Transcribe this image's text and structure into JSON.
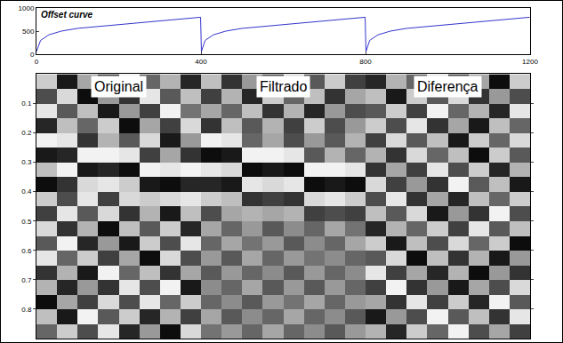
{
  "chart_data": [
    {
      "type": "line",
      "title": "Offset curve",
      "color": "#3333cc",
      "x": [
        0,
        10,
        30,
        60,
        100,
        200,
        300,
        399,
        401,
        410,
        430,
        460,
        500,
        600,
        700,
        799,
        801,
        810,
        830,
        860,
        900,
        1000,
        1100,
        1199
      ],
      "values": [
        60,
        300,
        420,
        500,
        560,
        640,
        720,
        800,
        60,
        300,
        420,
        500,
        560,
        640,
        720,
        800,
        60,
        300,
        420,
        500,
        560,
        640,
        720,
        800
      ],
      "xlim": [
        0,
        1200
      ],
      "xticks": [
        0,
        400,
        800,
        1200
      ],
      "ylim": [
        0,
        1000
      ],
      "yticks": [
        0,
        500,
        1000
      ]
    },
    {
      "type": "heatmap",
      "annotations": [
        "Original",
        "Filtrado",
        "Diferença"
      ],
      "tick_labels": "y",
      "xlim": [
        0,
        1200
      ],
      "ylim": [
        0.9,
        0
      ],
      "yticks": [
        0.1,
        0.2,
        0.3,
        0.4,
        0.5,
        0.6,
        0.7,
        0.8
      ],
      "zlim": [
        -1,
        1
      ],
      "x": [
        25,
        75,
        125,
        175,
        225,
        275,
        325,
        375,
        425,
        475,
        525,
        575,
        625,
        675,
        725,
        775,
        825,
        875,
        925,
        975,
        1025,
        1075,
        1125,
        1175
      ],
      "y": [
        0.025,
        0.075,
        0.125,
        0.175,
        0.225,
        0.275,
        0.325,
        0.375,
        0.425,
        0.475,
        0.525,
        0.575,
        0.625,
        0.675,
        0.725,
        0.775,
        0.825,
        0.875
      ],
      "z": [
        [
          0.6,
          -0.8,
          0.3,
          -0.5,
          0.9,
          -0.2,
          0.4,
          -0.7,
          0.5,
          -0.6,
          0.2,
          -0.4,
          0.7,
          -0.3,
          0.6,
          -0.5,
          -0.7,
          0.4,
          -0.2,
          0.8,
          -0.5,
          0.3,
          -0.9,
          0.6
        ],
        [
          -0.4,
          0.7,
          -0.9,
          0.2,
          -0.6,
          0.8,
          -0.3,
          0.5,
          -0.5,
          0.4,
          -0.7,
          0.6,
          -0.2,
          0.5,
          -0.6,
          0.3,
          0.5,
          -0.8,
          0.6,
          -0.3,
          0.7,
          -0.6,
          0.2,
          -0.4
        ],
        [
          0.8,
          -0.3,
          0.5,
          -0.8,
          0.2,
          -0.5,
          0.9,
          -0.1,
          0.3,
          -0.2,
          0.5,
          -0.6,
          0.4,
          -0.7,
          0.2,
          -0.4,
          -0.3,
          0.6,
          -0.5,
          0.9,
          -0.2,
          0.4,
          -0.7,
          0.8
        ],
        [
          -0.7,
          0.5,
          -0.2,
          0.6,
          -0.9,
          0.3,
          -0.5,
          0.7,
          -0.6,
          0.5,
          -0.3,
          0.4,
          -0.5,
          0.6,
          -0.4,
          0.2,
          0.6,
          -0.4,
          0.8,
          -0.6,
          0.3,
          -0.8,
          0.5,
          -0.2
        ],
        [
          0.9,
          0.8,
          -0.6,
          0.4,
          -0.3,
          0.7,
          -0.8,
          0.2,
          0.9,
          0.8,
          -0.2,
          0.3,
          -0.4,
          0.2,
          -0.3,
          0.4,
          -0.5,
          0.7,
          -0.3,
          0.5,
          -0.8,
          0.6,
          -0.2,
          0.7
        ],
        [
          -0.8,
          -0.7,
          0.9,
          0.9,
          0.8,
          -0.5,
          0.3,
          -0.6,
          -0.9,
          -0.8,
          0.9,
          0.9,
          0.8,
          -0.3,
          0.4,
          -0.2,
          0.4,
          -0.6,
          0.7,
          -0.2,
          0.5,
          -0.9,
          0.6,
          -0.3
        ],
        [
          0.5,
          0.9,
          -0.8,
          -0.7,
          -0.9,
          0.9,
          0.8,
          0.9,
          0.8,
          0.7,
          -0.9,
          -0.8,
          -0.9,
          0.9,
          0.9,
          0.8,
          -0.6,
          0.3,
          -0.5,
          0.8,
          -0.4,
          0.6,
          -0.7,
          0.4
        ],
        [
          -0.9,
          -0.6,
          0.7,
          0.8,
          0.6,
          -0.8,
          -0.9,
          -0.7,
          -0.7,
          -0.8,
          0.8,
          0.7,
          0.8,
          -0.9,
          -0.8,
          -0.9,
          0.7,
          -0.5,
          0.2,
          -0.6,
          0.9,
          -0.3,
          0.5,
          -0.8
        ],
        [
          0.6,
          -0.4,
          0.8,
          -0.5,
          0.7,
          0.6,
          0.7,
          0.8,
          0.6,
          0.5,
          -0.6,
          -0.5,
          -0.6,
          0.7,
          0.8,
          0.6,
          -0.4,
          0.8,
          -0.6,
          0.3,
          -0.7,
          0.5,
          -0.2,
          0.6
        ],
        [
          -0.5,
          0.8,
          -0.3,
          0.7,
          -0.6,
          0.4,
          -0.8,
          0.5,
          -0.4,
          0.3,
          0.4,
          0.3,
          0.4,
          -0.5,
          -0.4,
          -0.5,
          0.5,
          -0.3,
          0.7,
          -0.8,
          0.2,
          -0.6,
          0.9,
          -0.4
        ],
        [
          0.7,
          -0.6,
          0.4,
          -0.9,
          0.5,
          -0.3,
          0.6,
          -0.7,
          0.3,
          -0.2,
          0.2,
          -0.3,
          0.1,
          -0.2,
          0.3,
          -0.1,
          -0.7,
          0.4,
          -0.2,
          0.6,
          -0.5,
          0.8,
          -0.3,
          0.5
        ],
        [
          -0.3,
          0.9,
          -0.7,
          0.2,
          -0.8,
          0.6,
          -0.4,
          0.8,
          -0.2,
          0.3,
          -0.1,
          0.2,
          -0.3,
          0.1,
          -0.2,
          0.3,
          0.6,
          -0.8,
          0.5,
          -0.4,
          0.7,
          -0.2,
          0.6,
          -0.9
        ],
        [
          0.8,
          -0.2,
          0.6,
          -0.5,
          0.3,
          -0.9,
          0.7,
          -0.4,
          0.2,
          -0.3,
          0.3,
          -0.2,
          0.2,
          -0.1,
          0.1,
          -0.2,
          -0.3,
          0.7,
          -0.9,
          0.5,
          -0.6,
          0.4,
          -0.8,
          0.2
        ],
        [
          -0.6,
          0.4,
          -0.8,
          0.9,
          -0.2,
          0.5,
          -0.6,
          0.3,
          -0.3,
          0.2,
          -0.2,
          0.1,
          -0.3,
          0.2,
          -0.2,
          0.1,
          0.8,
          -0.5,
          0.3,
          -0.7,
          0.4,
          -0.9,
          0.2,
          -0.6
        ],
        [
          0.4,
          -0.7,
          0.2,
          -0.6,
          0.8,
          -0.4,
          0.9,
          -0.8,
          0.1,
          -0.2,
          0.3,
          -0.3,
          0.2,
          -0.3,
          0.2,
          -0.2,
          -0.5,
          0.9,
          -0.6,
          0.2,
          -0.8,
          0.3,
          -0.4,
          0.7
        ],
        [
          -0.9,
          0.3,
          -0.5,
          0.7,
          -0.4,
          0.8,
          -0.2,
          0.6,
          -0.2,
          0.1,
          -0.3,
          0.2,
          -0.1,
          0.3,
          -0.2,
          0.2,
          0.3,
          -0.6,
          0.8,
          -0.5,
          0.6,
          -0.7,
          0.9,
          -0.3
        ],
        [
          0.5,
          -0.8,
          0.9,
          -0.3,
          0.6,
          -0.7,
          0.4,
          -0.5,
          0.3,
          -0.3,
          0.1,
          -0.2,
          0.3,
          -0.2,
          0.1,
          -0.3,
          -0.8,
          0.2,
          -0.4,
          0.9,
          -0.3,
          0.5,
          -0.6,
          0.8
        ],
        [
          -0.2,
          0.6,
          -0.4,
          0.8,
          -0.7,
          0.2,
          -0.9,
          0.7,
          -0.1,
          0.2,
          -0.2,
          0.3,
          -0.2,
          0.1,
          -0.3,
          0.2,
          0.4,
          -0.7,
          0.6,
          -0.2,
          0.9,
          -0.4,
          0.3,
          -0.5
        ]
      ]
    }
  ]
}
